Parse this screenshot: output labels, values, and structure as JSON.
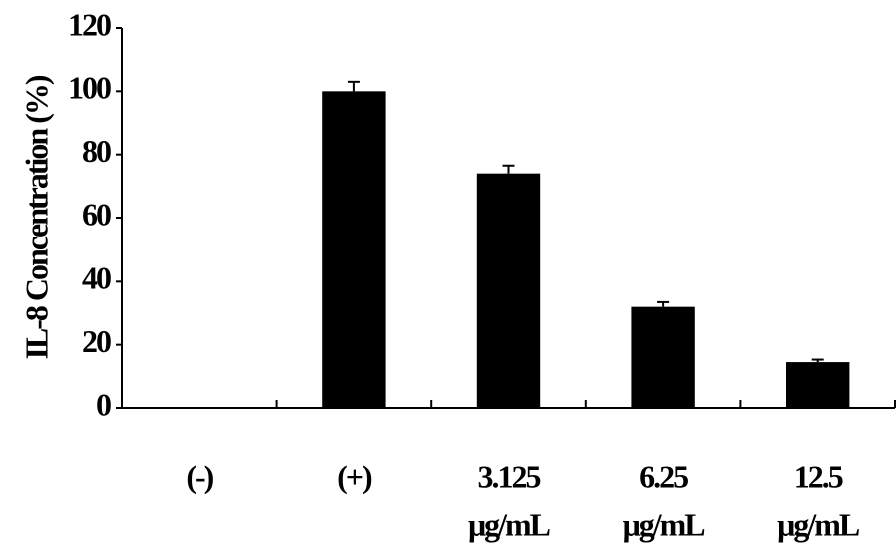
{
  "chart_data": {
    "type": "bar",
    "ylabel": "IL-8 Concentration (%)",
    "categories": [
      "(-)",
      "(+)",
      "3.125",
      "6.25",
      "12.5"
    ],
    "category_units": [
      null,
      null,
      "μg/mL",
      "μg/mL",
      "μg/mL"
    ],
    "values": [
      0,
      100,
      74,
      32,
      14.5
    ],
    "errors": [
      null,
      3,
      2.5,
      1.5,
      0.8
    ],
    "color": "#000000",
    "ylim": [
      0,
      120
    ],
    "yticks": [
      0,
      20,
      40,
      60,
      80,
      100,
      120
    ]
  }
}
